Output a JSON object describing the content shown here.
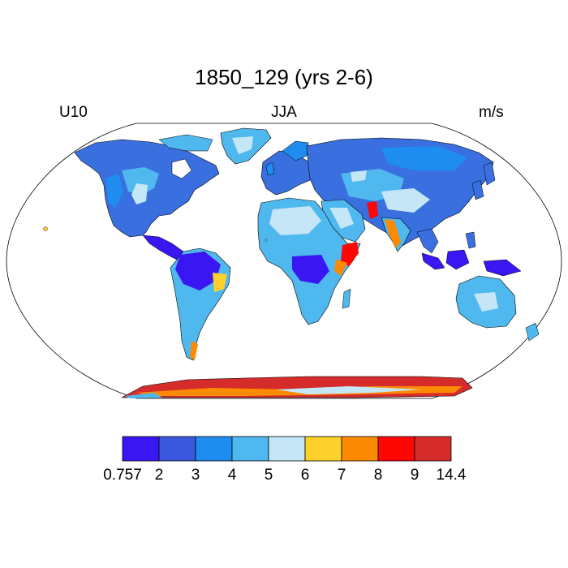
{
  "title": "1850_129 (yrs 2-6)",
  "left_label": "U10",
  "center_label": "JJA",
  "right_label": "m/s",
  "map": {
    "projection": "Robinson",
    "background": "#ffffff",
    "outline_color": "#000000"
  },
  "colorbar": {
    "tick_labels": [
      "0.757",
      "2",
      "3",
      "4",
      "5",
      "6",
      "7",
      "8",
      "9",
      "14.4"
    ],
    "colors": [
      "#3a16f2",
      "#3a58dd",
      "#1f8cf0",
      "#4fb8ee",
      "#c5e6f6",
      "#fdd02c",
      "#fd8a03",
      "#fe0604",
      "#d52b2b"
    ]
  }
}
